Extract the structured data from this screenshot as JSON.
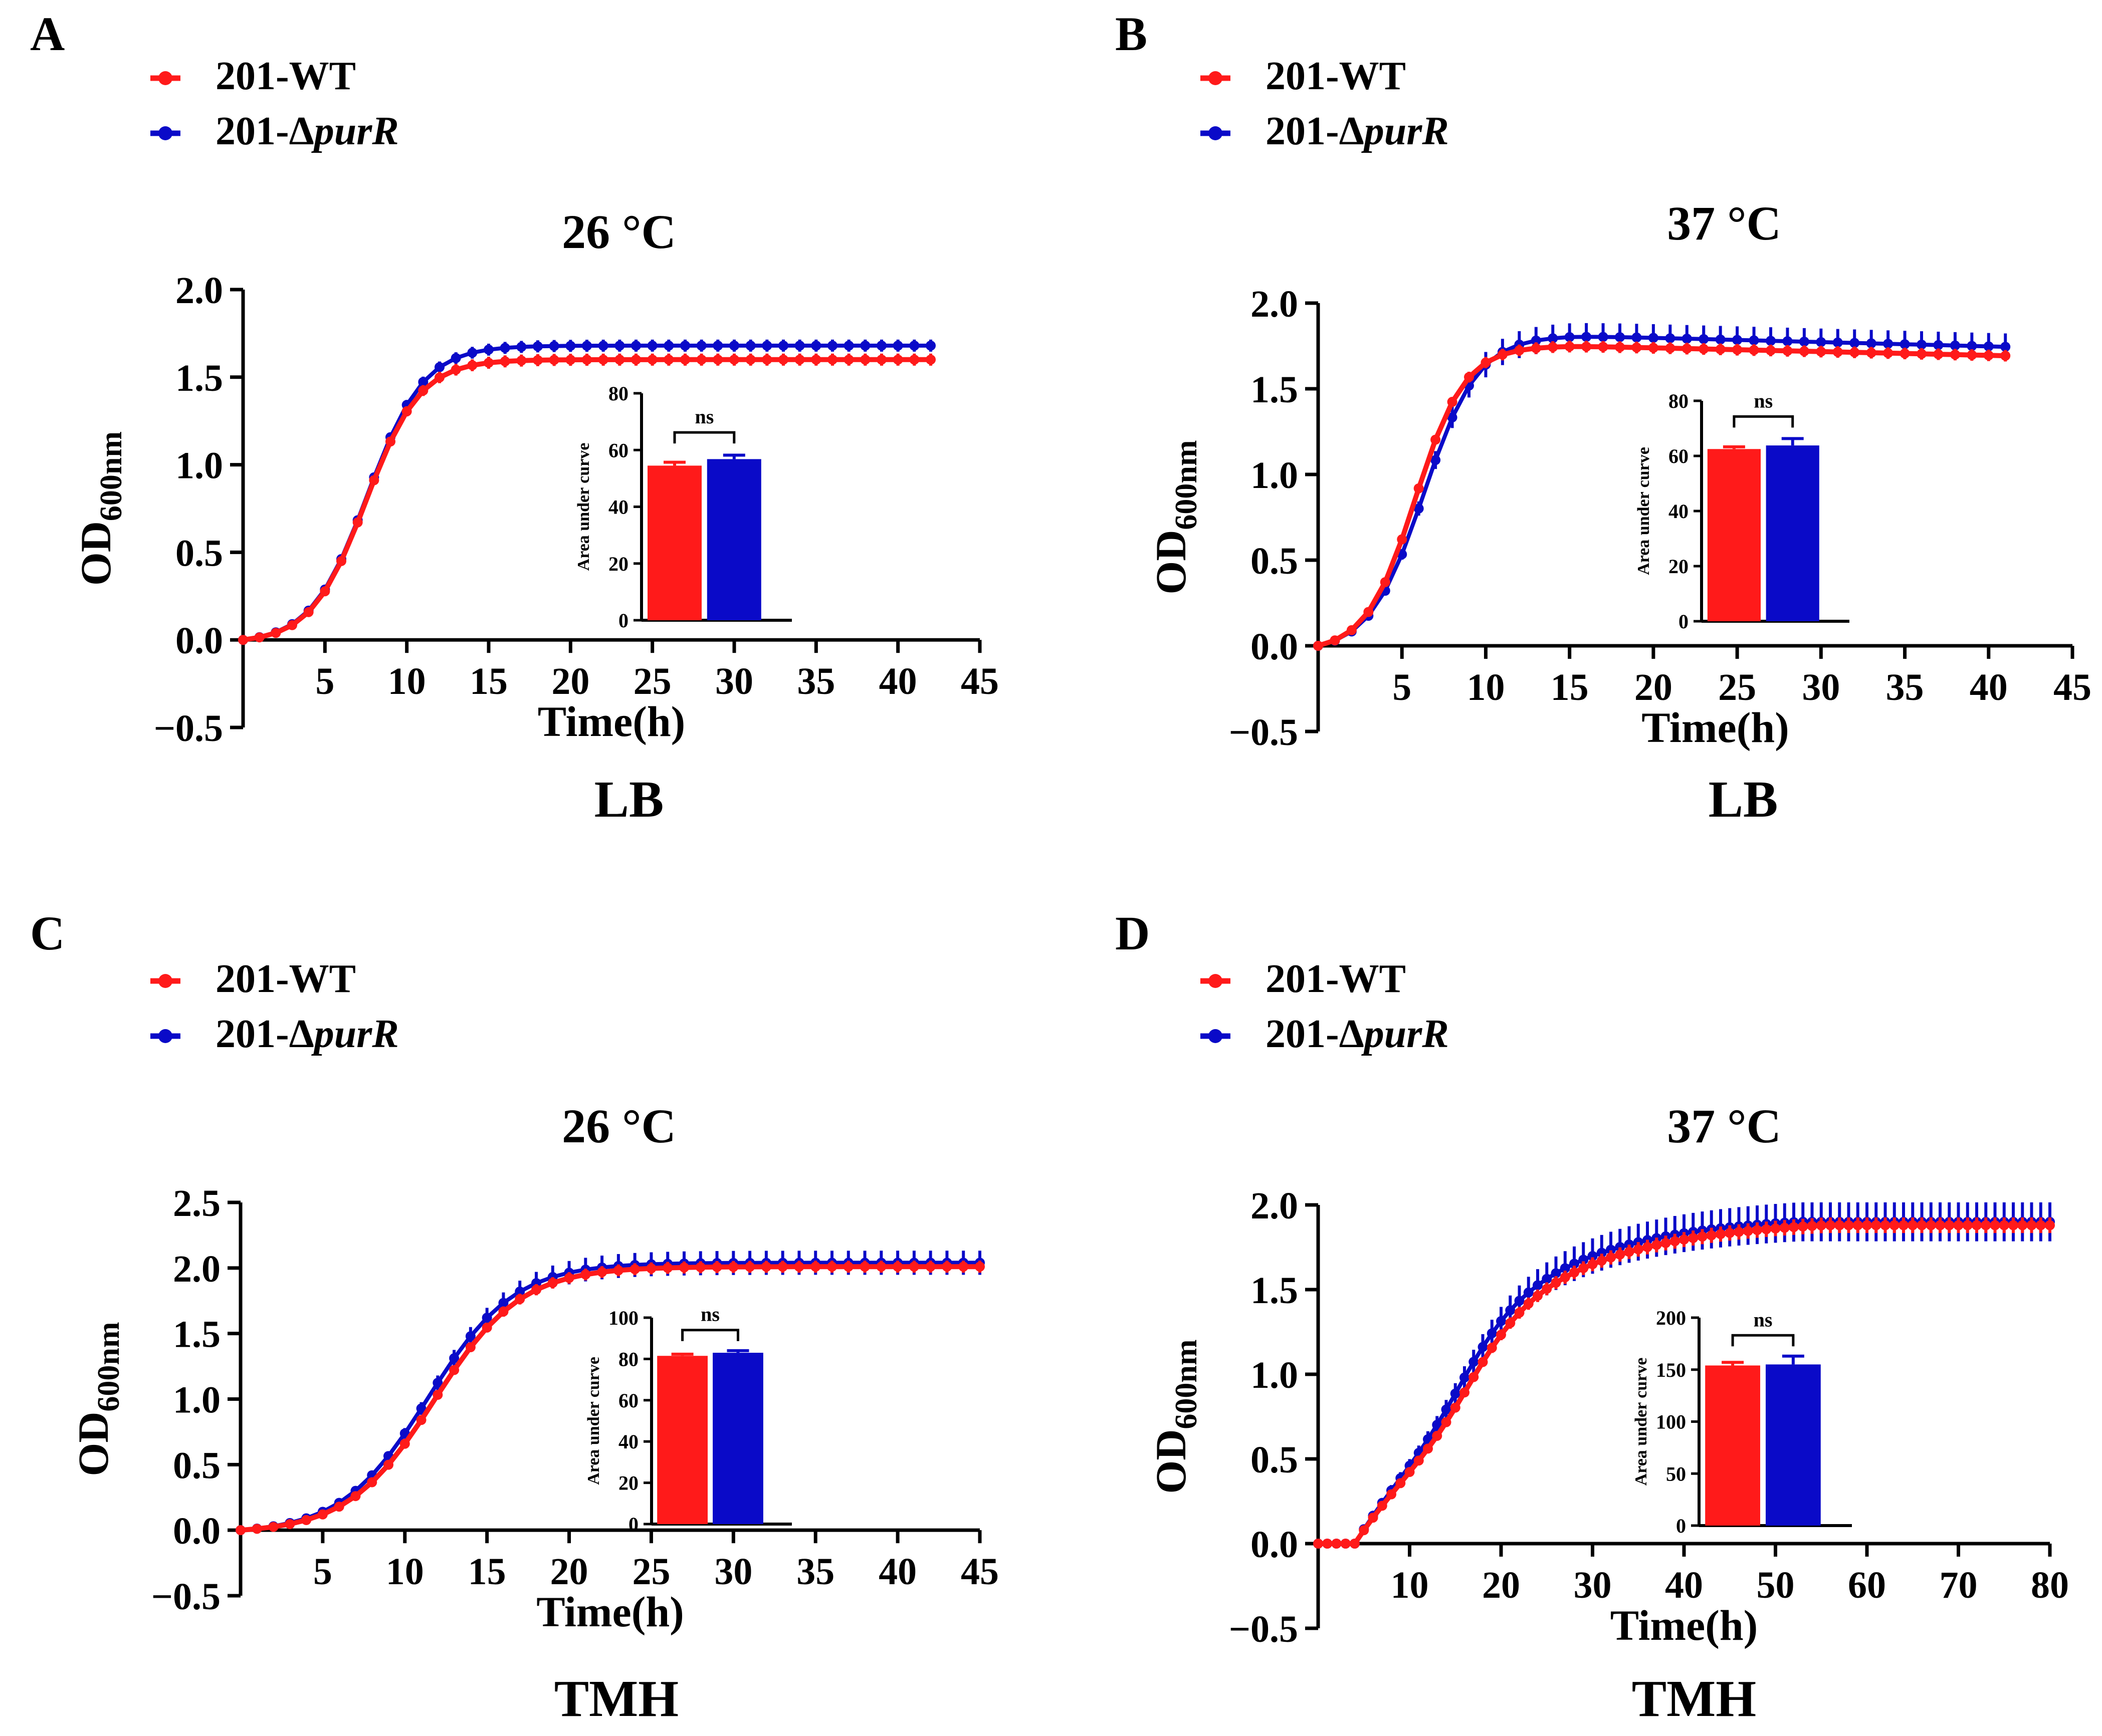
{
  "figure": {
    "colors": {
      "wt": "#ff1a1a",
      "mutant": "#0a0ac8",
      "axis": "#000000"
    },
    "legend_series": [
      {
        "key": "wt",
        "label_prefix": "201-WT",
        "label_italic": ""
      },
      {
        "key": "mutant",
        "label_prefix": "201-Δ",
        "label_italic": "purR"
      }
    ]
  },
  "chart_data": [
    {
      "panel": "A",
      "type": "line",
      "title": "26 °C",
      "medium": "LB",
      "xlabel": "Time(h)",
      "ylabel_main": "OD",
      "ylabel_sub": "600nm",
      "xlim": [
        0,
        45
      ],
      "ylim": [
        -0.5,
        2.0
      ],
      "xticks": [
        5,
        10,
        15,
        20,
        25,
        30,
        35,
        40,
        45
      ],
      "yticks": [
        -0.5,
        0.0,
        0.5,
        1.0,
        1.5,
        2.0
      ],
      "ytick_labels": [
        "−0.5",
        "0.0",
        "0.5",
        "1.0",
        "1.5",
        "2.0"
      ],
      "model": {
        "wt": {
          "K": 1.6,
          "r": 0.6,
          "t0": 7.5,
          "end": 42,
          "err": 0.03
        },
        "mutant": {
          "K": 1.68,
          "r": 0.58,
          "t0": 7.6,
          "end": 42,
          "err": 0.03
        }
      },
      "inset": {
        "type": "bar",
        "ylabel": "Area under curve",
        "categories": [
          "201-WT",
          "201-ΔpurR"
        ],
        "values": [
          54.5,
          56.8
        ],
        "errors": [
          1.2,
          1.4
        ],
        "ylim": [
          0,
          80
        ],
        "yticks": [
          0,
          20,
          40,
          60,
          80
        ],
        "annotation": "ns"
      }
    },
    {
      "panel": "B",
      "type": "line",
      "title": "37 °C",
      "medium": "LB",
      "xlabel": "Time(h)",
      "ylabel_main": "OD",
      "ylabel_sub": "600nm",
      "xlim": [
        0,
        45
      ],
      "ylim": [
        -0.5,
        2.0
      ],
      "xticks": [
        5,
        10,
        15,
        20,
        25,
        30,
        35,
        40,
        45
      ],
      "yticks": [
        -0.5,
        0.0,
        0.5,
        1.0,
        1.5,
        2.0
      ],
      "ytick_labels": [
        "−0.5",
        "0.0",
        "0.5",
        "1.0",
        "1.5",
        "2.0"
      ],
      "model": {
        "wt": {
          "K": 1.75,
          "r": 0.68,
          "t0": 5.8,
          "end": 41,
          "decline": 0.0022,
          "err": 0.03
        },
        "mutant": {
          "K": 1.81,
          "r": 0.62,
          "t0": 6.3,
          "end": 41,
          "decline": 0.0025,
          "err": 0.07
        }
      },
      "inset": {
        "type": "bar",
        "ylabel": "Area under curve",
        "categories": [
          "201-WT",
          "201-ΔpurR"
        ],
        "values": [
          62.5,
          63.8
        ],
        "errors": [
          0.8,
          2.5
        ],
        "ylim": [
          0,
          80
        ],
        "yticks": [
          0,
          20,
          40,
          60,
          80
        ],
        "annotation": "ns"
      }
    },
    {
      "panel": "C",
      "type": "line",
      "title": "26 °C",
      "medium": "TMH",
      "xlabel": "Time(h)",
      "ylabel_main": "OD",
      "ylabel_sub": "600nm",
      "xlim": [
        0,
        45
      ],
      "ylim": [
        -0.5,
        2.5
      ],
      "xticks": [
        5,
        10,
        15,
        20,
        25,
        30,
        35,
        40,
        45
      ],
      "yticks": [
        -0.5,
        0.0,
        0.5,
        1.0,
        1.5,
        2.0,
        2.5
      ],
      "ytick_labels": [
        "−0.5",
        "0.0",
        "0.5",
        "1.0",
        "1.5",
        "2.0",
        "2.5"
      ],
      "model": {
        "wt": {
          "K": 2.01,
          "r": 0.38,
          "t0": 11.8,
          "end": 45,
          "err": 0.04
        },
        "mutant": {
          "K": 2.04,
          "r": 0.38,
          "t0": 11.4,
          "end": 45,
          "err": 0.08
        }
      },
      "inset": {
        "type": "bar",
        "ylabel": "Area under curve",
        "categories": [
          "201-WT",
          "201-ΔpurR"
        ],
        "values": [
          81.5,
          83.0
        ],
        "errors": [
          0.8,
          1.0
        ],
        "ylim": [
          0,
          100
        ],
        "yticks": [
          0,
          20,
          40,
          60,
          80,
          100
        ],
        "annotation": "ns"
      }
    },
    {
      "panel": "D",
      "type": "line",
      "title": "37 °C",
      "medium": "TMH",
      "xlabel": "Time(h)",
      "ylabel_main": "OD",
      "ylabel_sub": "600nm",
      "xlim": [
        0,
        80
      ],
      "ylim": [
        -0.5,
        2.0
      ],
      "xticks": [
        10,
        20,
        30,
        40,
        50,
        60,
        70,
        80
      ],
      "yticks": [
        -0.5,
        0.0,
        0.5,
        1.0,
        1.5,
        2.0
      ],
      "ytick_labels": [
        "−0.5",
        "0.0",
        "0.5",
        "1.0",
        "1.5",
        "2.0"
      ],
      "model": {
        "wt": {
          "K": 1.88,
          "r": 0.085,
          "t0": 16,
          "end": 80,
          "fast": true,
          "err": 0.04
        },
        "mutant": {
          "K": 1.9,
          "r": 0.09,
          "t0": 15,
          "end": 80,
          "fast": true,
          "err": 0.1
        }
      },
      "inset": {
        "type": "bar",
        "ylabel": "Area under curve",
        "categories": [
          "201-WT",
          "201-ΔpurR"
        ],
        "values": [
          154,
          155
        ],
        "errors": [
          3,
          8
        ],
        "ylim": [
          0,
          200
        ],
        "yticks": [
          0,
          50,
          100,
          150,
          200
        ],
        "annotation": "ns"
      }
    }
  ]
}
